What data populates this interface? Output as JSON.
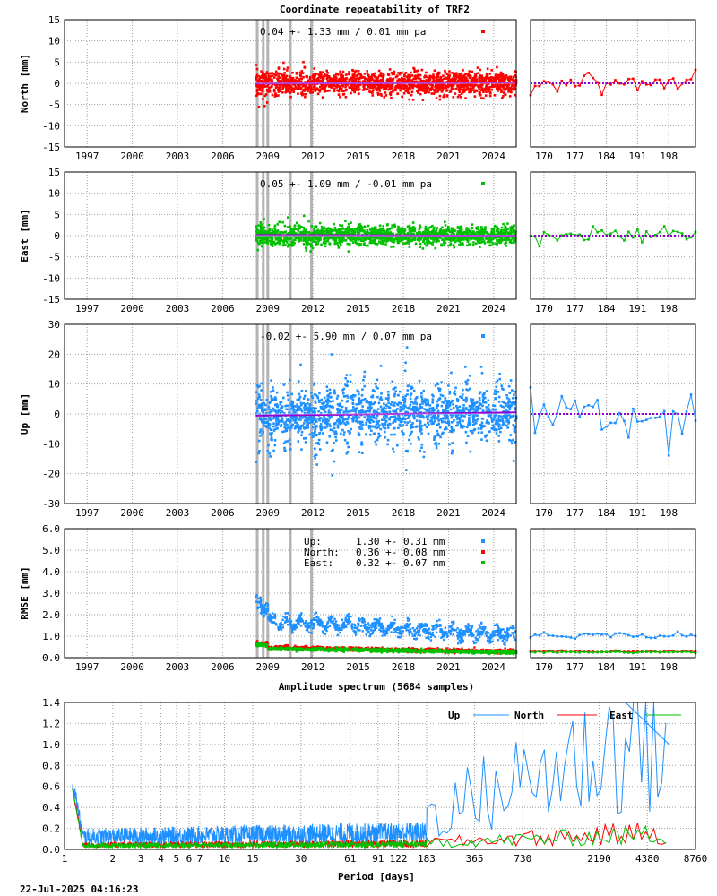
{
  "title": "Coordinate repeatability of TRF2",
  "timestamp": "22-Jul-2025 04:16:23",
  "colors": {
    "north": "#ff0000",
    "east": "#00c000",
    "up": "#1e90ff",
    "trend": "#9400d3",
    "event": "#b4b4b4",
    "grid": "#a0a0a0"
  },
  "chart_data": [
    {
      "id": "north",
      "type": "scatter",
      "ylabel": "North [mm]",
      "ylim": [
        -15,
        15
      ],
      "yticks": [
        -15,
        -10,
        -5,
        0,
        5,
        10,
        15
      ],
      "xlim": [
        1995.5,
        2025.5
      ],
      "xticks": [
        1997,
        2000,
        2003,
        2006,
        2009,
        2012,
        2015,
        2018,
        2021,
        2024
      ],
      "annotation": "0.04 +- 1.33 mm /  0.01 mm pa",
      "series": [
        {
          "color_key": "north",
          "start": 2008.2,
          "end": 2025.5,
          "mean": 0.04,
          "sigma": 1.33,
          "trend": 0.01
        }
      ],
      "event_lines": [
        2008.3,
        2008.7,
        2009.0,
        2010.5,
        2011.9
      ],
      "zoom": {
        "xticks": [
          170,
          177,
          184,
          191,
          198
        ],
        "xlim": [
          167,
          204
        ]
      }
    },
    {
      "id": "east",
      "type": "scatter",
      "ylabel": "East [mm]",
      "ylim": [
        -15,
        15
      ],
      "yticks": [
        -15,
        -10,
        -5,
        0,
        5,
        10,
        15
      ],
      "xlim": [
        1995.5,
        2025.5
      ],
      "xticks": [
        1997,
        2000,
        2003,
        2006,
        2009,
        2012,
        2015,
        2018,
        2021,
        2024
      ],
      "annotation": "0.05 +- 1.09 mm / -0.01 mm pa",
      "series": [
        {
          "color_key": "east",
          "start": 2008.2,
          "end": 2025.5,
          "mean": 0.05,
          "sigma": 1.09,
          "trend": -0.01
        }
      ],
      "event_lines": [
        2008.3,
        2008.7,
        2009.0,
        2010.5,
        2011.9
      ],
      "zoom": {
        "xticks": [
          170,
          177,
          184,
          191,
          198
        ],
        "xlim": [
          167,
          204
        ]
      }
    },
    {
      "id": "up",
      "type": "scatter",
      "ylabel": "Up [mm]",
      "ylim": [
        -30,
        30
      ],
      "yticks": [
        -30,
        -20,
        -10,
        0,
        10,
        20,
        30
      ],
      "xlim": [
        1995.5,
        2025.5
      ],
      "xticks": [
        1997,
        2000,
        2003,
        2006,
        2009,
        2012,
        2015,
        2018,
        2021,
        2024
      ],
      "annotation": "-0.02 +- 5.90 mm /  0.07 mm pa",
      "series": [
        {
          "color_key": "up",
          "start": 2008.2,
          "end": 2025.5,
          "mean": -0.02,
          "sigma": 5.9,
          "trend": 0.07
        }
      ],
      "event_lines": [
        2008.3,
        2008.7,
        2009.0,
        2010.5,
        2011.9
      ],
      "zoom": {
        "xticks": [
          170,
          177,
          184,
          191,
          198
        ],
        "xlim": [
          167,
          204
        ]
      }
    },
    {
      "id": "rmse",
      "type": "scatter",
      "ylabel": "RMSE [mm]",
      "ylim": [
        0,
        6
      ],
      "yticks": [
        "0.0",
        "1.0",
        "2.0",
        "3.0",
        "4.0",
        "5.0",
        "6.0"
      ],
      "xlim": [
        1995.5,
        2025.5
      ],
      "xticks": [
        1997,
        2000,
        2003,
        2006,
        2009,
        2012,
        2015,
        2018,
        2021,
        2024
      ],
      "legend": [
        {
          "label": "Up:",
          "value": "1.30 +- 0.31 mm",
          "color_key": "up",
          "mean": 1.3
        },
        {
          "label": "North:",
          "value": "0.36 +- 0.08 mm",
          "color_key": "north",
          "mean": 0.36
        },
        {
          "label": "East:",
          "value": "0.32 +- 0.07 mm",
          "color_key": "east",
          "mean": 0.32
        }
      ],
      "event_lines": [
        2008.3,
        2008.7,
        2009.0,
        2010.5,
        2011.9
      ],
      "zoom": {
        "xticks": [
          170,
          177,
          184,
          191,
          198
        ],
        "xlim": [
          167,
          204
        ]
      }
    },
    {
      "id": "spectrum",
      "type": "line",
      "title": "Amplitude spectrum (5684 samples)",
      "xlabel": "Period [days]",
      "xscale": "log",
      "xlim": [
        1,
        8760
      ],
      "ylim": [
        0,
        1.4
      ],
      "yticks": [
        "0.0",
        "0.2",
        "0.4",
        "0.6",
        "0.8",
        "1.0",
        "1.2",
        "1.4"
      ],
      "xticks": [
        1,
        2,
        3,
        4,
        5,
        6,
        7,
        10,
        15,
        30,
        61,
        91,
        122,
        183,
        365,
        730,
        2190,
        4380,
        8760
      ],
      "legend_position": "top-right",
      "series": [
        {
          "name": "Up",
          "color_key": "up"
        },
        {
          "name": "North",
          "color_key": "north"
        },
        {
          "name": "East",
          "color_key": "east"
        }
      ]
    }
  ]
}
